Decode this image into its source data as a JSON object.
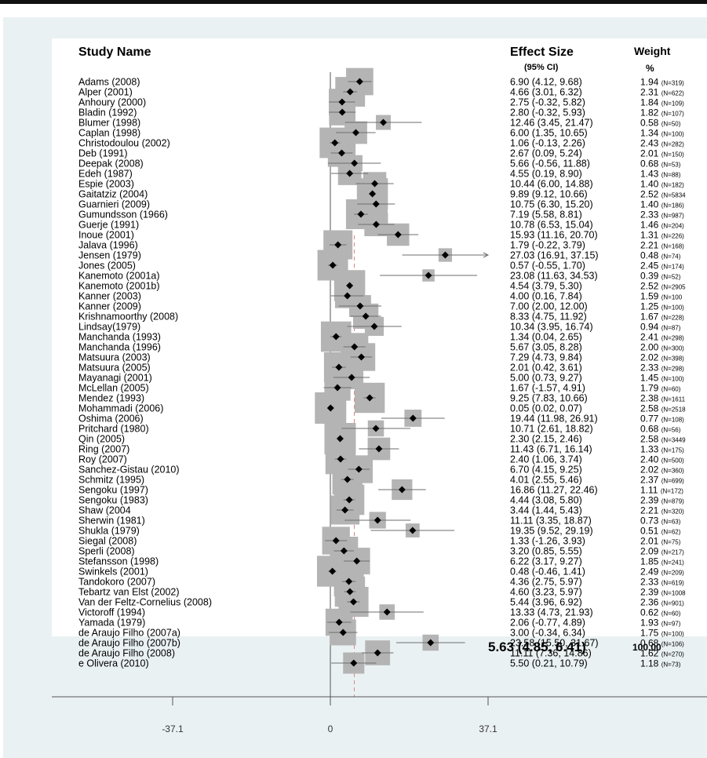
{
  "headers": {
    "study": "Study Name",
    "effect": "Effect Size",
    "ci": "(95% CI)",
    "weight": "Weight",
    "percent": "%"
  },
  "pooled": {
    "text": "5.63 (4.85, 6.41)",
    "weight": "100.00"
  },
  "chart_data": {
    "type": "forest",
    "title": "",
    "xlabel": "",
    "ylabel": "",
    "x_ticks": [
      "-37.1",
      "0",
      "37.1"
    ],
    "xlim": [
      -37.1,
      37.1
    ],
    "pooled": {
      "estimate": 5.63,
      "lower": 4.85,
      "upper": 6.41,
      "weight": "100.00"
    },
    "studies": [
      {
        "name": "Adams (2008)",
        "effect": 6.9,
        "lower": 4.12,
        "upper": 9.68,
        "ci": "6.90 (4.12, 9.68)",
        "weight": "1.94",
        "n": "(N=319)"
      },
      {
        "name": "Alper (2001)",
        "effect": 4.66,
        "lower": 3.01,
        "upper": 6.32,
        "ci": "4.66 (3.01, 6.32)",
        "weight": "2.31",
        "n": "(N=622)"
      },
      {
        "name": "Anhoury (2000)",
        "effect": 2.75,
        "lower": -0.32,
        "upper": 5.82,
        "ci": "2.75 (-0.32, 5.82)",
        "weight": "1.84",
        "n": "(N=109)"
      },
      {
        "name": "Bladin (1992)",
        "effect": 2.8,
        "lower": -0.32,
        "upper": 5.93,
        "ci": "2.80 (-0.32, 5.93)",
        "weight": "1.82",
        "n": "(N=107)"
      },
      {
        "name": "Blumer (1998)",
        "effect": 12.46,
        "lower": 3.45,
        "upper": 21.47,
        "ci": "12.46 (3.45, 21.47)",
        "weight": "0.58",
        "n": "(N=50)"
      },
      {
        "name": "Caplan (1998)",
        "effect": 6.0,
        "lower": 1.35,
        "upper": 10.65,
        "ci": "6.00 (1.35, 10.65)",
        "weight": "1.34",
        "n": "(N=100)"
      },
      {
        "name": "Christodoulou (2002)",
        "effect": 1.06,
        "lower": -0.13,
        "upper": 2.26,
        "ci": "1.06 (-0.13, 2.26)",
        "weight": "2.43",
        "n": "(N=282)"
      },
      {
        "name": "Deb (1991)",
        "effect": 2.67,
        "lower": 0.09,
        "upper": 5.24,
        "ci": "2.67 (0.09, 5.24)",
        "weight": "2.01",
        "n": "(N=150)"
      },
      {
        "name": "Deepak (2008)",
        "effect": 5.66,
        "lower": -0.56,
        "upper": 11.88,
        "ci": "5.66 (-0.56, 11.88)",
        "weight": "0.68",
        "n": "(N=53)"
      },
      {
        "name": "Edeh (1987)",
        "effect": 4.55,
        "lower": 0.19,
        "upper": 8.9,
        "ci": "4.55 (0.19, 8.90)",
        "weight": "1.43",
        "n": "(N=88)"
      },
      {
        "name": "Espie (2003)",
        "effect": 10.44,
        "lower": 6.0,
        "upper": 14.88,
        "ci": "10.44 (6.00, 14.88)",
        "weight": "1.40",
        "n": "(N=182)"
      },
      {
        "name": "Gaitatziz (2004)",
        "effect": 9.89,
        "lower": 9.12,
        "upper": 10.66,
        "ci": "9.89 (9.12, 10.66)",
        "weight": "2.52",
        "n": "(N=5834"
      },
      {
        "name": "Guarnieri (2009)",
        "effect": 10.75,
        "lower": 6.3,
        "upper": 15.2,
        "ci": "10.75 (6.30, 15.20)",
        "weight": "1.40",
        "n": "(N=186)"
      },
      {
        "name": "Gumundsson (1966)",
        "effect": 7.19,
        "lower": 5.58,
        "upper": 8.81,
        "ci": "7.19 (5.58, 8.81)",
        "weight": "2.33",
        "n": "(N=987)"
      },
      {
        "name": "Guerje (1991)",
        "effect": 10.78,
        "lower": 6.53,
        "upper": 15.04,
        "ci": "10.78 (6.53, 15.04)",
        "weight": "1.46",
        "n": "(N=204)"
      },
      {
        "name": "Inoue (2001)",
        "effect": 15.93,
        "lower": 11.16,
        "upper": 20.7,
        "ci": "15.93 (11.16, 20.70)",
        "weight": "1.31",
        "n": "(N=226)"
      },
      {
        "name": "Jalava (1996)",
        "effect": 1.79,
        "lower": -0.22,
        "upper": 3.79,
        "ci": "1.79 (-0.22, 3.79)",
        "weight": "2.21",
        "n": "(N=168)"
      },
      {
        "name": "Jensen (1979)",
        "effect": 27.03,
        "lower": 16.91,
        "upper": 37.15,
        "ci": "27.03 (16.91, 37.15)",
        "weight": "0.48",
        "n": "(N=74)",
        "arrow": true
      },
      {
        "name": "Jones (2005)",
        "effect": 0.57,
        "lower": -0.55,
        "upper": 1.7,
        "ci": "0.57 (-0.55, 1.70)",
        "weight": "2.45",
        "n": "(N=174)"
      },
      {
        "name": "Kanemoto (2001a)",
        "effect": 23.08,
        "lower": 11.63,
        "upper": 34.53,
        "ci": "23.08 (11.63, 34.53)",
        "weight": "0.39",
        "n": "(N=52)"
      },
      {
        "name": "Kanemoto (2001b)",
        "effect": 4.54,
        "lower": 3.79,
        "upper": 5.3,
        "ci": "4.54 (3.79, 5.30)",
        "weight": "2.52",
        "n": "(N=2905"
      },
      {
        "name": "Kanner (2003)",
        "effect": 4.0,
        "lower": 0.16,
        "upper": 7.84,
        "ci": "4.00 (0.16, 7.84)",
        "weight": "1.59",
        "n": "(N=100"
      },
      {
        "name": "Kanner (2009)",
        "effect": 7.0,
        "lower": 2.0,
        "upper": 12.0,
        "ci": "7.00 (2.00, 12.00)",
        "weight": "1.25",
        "n": "(N=100)"
      },
      {
        "name": "Krishnamoorthy (2008)",
        "effect": 8.33,
        "lower": 4.75,
        "upper": 11.92,
        "ci": "8.33 (4.75, 11.92)",
        "weight": "1.67",
        "n": "(N=228)"
      },
      {
        "name": "Lindsay(1979)",
        "effect": 10.34,
        "lower": 3.95,
        "upper": 16.74,
        "ci": "10.34 (3.95, 16.74)",
        "weight": "0.94",
        "n": "(N=87)"
      },
      {
        "name": "Manchanda (1993)",
        "effect": 1.34,
        "lower": 0.04,
        "upper": 2.65,
        "ci": "1.34 (0.04, 2.65)",
        "weight": "2.41",
        "n": "(N=298)"
      },
      {
        "name": "Manchanda (1996)",
        "effect": 5.67,
        "lower": 3.05,
        "upper": 8.28,
        "ci": "5.67 (3.05, 8.28)",
        "weight": "2.00",
        "n": "(N=300)"
      },
      {
        "name": "Matsuura (2003)",
        "effect": 7.29,
        "lower": 4.73,
        "upper": 9.84,
        "ci": "7.29 (4.73, 9.84)",
        "weight": "2.02",
        "n": "(N=398)"
      },
      {
        "name": "Matsuura (2005)",
        "effect": 2.01,
        "lower": 0.42,
        "upper": 3.61,
        "ci": "2.01 (0.42, 3.61)",
        "weight": "2.33",
        "n": "(N=298)"
      },
      {
        "name": "Mayanagi (2001)",
        "effect": 5.0,
        "lower": 0.73,
        "upper": 9.27,
        "ci": "5.00 (0.73, 9.27)",
        "weight": "1.45",
        "n": "(N=100)"
      },
      {
        "name": "McLellan (2005)",
        "effect": 1.67,
        "lower": -1.57,
        "upper": 4.91,
        "ci": "1.67 (-1.57, 4.91)",
        "weight": "1.79",
        "n": "(N=60)"
      },
      {
        "name": "Mendez (1993)",
        "effect": 9.25,
        "lower": 7.83,
        "upper": 10.66,
        "ci": "9.25 (7.83, 10.66)",
        "weight": "2.38",
        "n": "(N=1611"
      },
      {
        "name": "Mohammadi (2006)",
        "effect": 0.05,
        "lower": 0.02,
        "upper": 0.07,
        "ci": "0.05 (0.02, 0.07)",
        "weight": "2.58",
        "n": "(N=2518"
      },
      {
        "name": "Oshima (2006)",
        "effect": 19.44,
        "lower": 11.98,
        "upper": 26.91,
        "ci": "19.44 (11.98, 26.91)",
        "weight": "0.77",
        "n": "(N=108)"
      },
      {
        "name": "Pritchard (1980)",
        "effect": 10.71,
        "lower": 2.61,
        "upper": 18.82,
        "ci": "10.71 (2.61, 18.82)",
        "weight": "0.68",
        "n": "(N=56)"
      },
      {
        "name": "Qin (2005)",
        "effect": 2.3,
        "lower": 2.15,
        "upper": 2.46,
        "ci": "2.30 (2.15, 2.46)",
        "weight": "2.58",
        "n": "(N=3449"
      },
      {
        "name": "Ring (2007)",
        "effect": 11.43,
        "lower": 6.71,
        "upper": 16.14,
        "ci": "11.43 (6.71, 16.14)",
        "weight": "1.33",
        "n": "(N=175)"
      },
      {
        "name": "Roy (2007)",
        "effect": 2.4,
        "lower": 1.06,
        "upper": 3.74,
        "ci": "2.40 (1.06, 3.74)",
        "weight": "2.40",
        "n": "(N=500)"
      },
      {
        "name": "Sanchez-Gistau (2010)",
        "effect": 6.7,
        "lower": 4.15,
        "upper": 9.25,
        "ci": "6.70 (4.15, 9.25)",
        "weight": "2.02",
        "n": "(N=360)"
      },
      {
        "name": "Schmitz (1995)",
        "effect": 4.01,
        "lower": 2.55,
        "upper": 5.46,
        "ci": "4.01 (2.55, 5.46)",
        "weight": "2.37",
        "n": "(N=699)"
      },
      {
        "name": "Sengoku (1997)",
        "effect": 16.86,
        "lower": 11.27,
        "upper": 22.46,
        "ci": "16.86 (11.27, 22.46)",
        "weight": "1.11",
        "n": "(N=172)"
      },
      {
        "name": "Sengoku (1983)",
        "effect": 4.44,
        "lower": 3.08,
        "upper": 5.8,
        "ci": "4.44 (3.08, 5.80)",
        "weight": "2.39",
        "n": "(N=879)"
      },
      {
        "name": "Shaw (2004",
        "effect": 3.44,
        "lower": 1.44,
        "upper": 5.43,
        "ci": "3.44 (1.44, 5.43)",
        "weight": "2.21",
        "n": "(N=320)"
      },
      {
        "name": "Sherwin (1981)",
        "effect": 11.11,
        "lower": 3.35,
        "upper": 18.87,
        "ci": "11.11 (3.35, 18.87)",
        "weight": "0.73",
        "n": "(N=63)"
      },
      {
        "name": "Shukla (1979)",
        "effect": 19.35,
        "lower": 9.52,
        "upper": 29.19,
        "ci": "19.35 (9.52, 29.19)",
        "weight": "0.51",
        "n": "(N=62)"
      },
      {
        "name": "Siegal (2008)",
        "effect": 1.33,
        "lower": -1.26,
        "upper": 3.93,
        "ci": "1.33 (-1.26, 3.93)",
        "weight": "2.01",
        "n": "(N=75)"
      },
      {
        "name": "Sperli (2008)",
        "effect": 3.2,
        "lower": 0.85,
        "upper": 5.55,
        "ci": "3.20 (0.85, 5.55)",
        "weight": "2.09",
        "n": "(N=217)"
      },
      {
        "name": "Stefansson (1998)",
        "effect": 6.22,
        "lower": 3.17,
        "upper": 9.27,
        "ci": "6.22 (3.17, 9.27)",
        "weight": "1.85",
        "n": "(N=241)"
      },
      {
        "name": "Swinkels (2001)",
        "effect": 0.48,
        "lower": -0.46,
        "upper": 1.41,
        "ci": "0.48 (-0.46, 1.41)",
        "weight": "2.49",
        "n": "(N=209)"
      },
      {
        "name": "Tandokoro (2007)",
        "effect": 4.36,
        "lower": 2.75,
        "upper": 5.97,
        "ci": "4.36 (2.75, 5.97)",
        "weight": "2.33",
        "n": "(N=619)"
      },
      {
        "name": "Tebartz van Elst (2002)",
        "effect": 4.6,
        "lower": 3.23,
        "upper": 5.97,
        "ci": "4.60 (3.23, 5.97)",
        "weight": "2.39",
        "n": "(N=1008"
      },
      {
        "name": "Van der Feltz-Cornelius (2008)",
        "effect": 5.44,
        "lower": 3.96,
        "upper": 6.92,
        "ci": "5.44 (3.96, 6.92)",
        "weight": "2.36",
        "n": "(N=901)"
      },
      {
        "name": "Victoroff (1994)",
        "effect": 13.33,
        "lower": 4.73,
        "upper": 21.93,
        "ci": "13.33 (4.73, 21.93)",
        "weight": "0.62",
        "n": "(N=60)"
      },
      {
        "name": "Yamada (1979)",
        "effect": 2.06,
        "lower": -0.77,
        "upper": 4.89,
        "ci": "2.06 (-0.77, 4.89)",
        "weight": "1.93",
        "n": "(N=97)"
      },
      {
        "name": "de Araujo Filho (2007a)",
        "effect": 3.0,
        "lower": -0.34,
        "upper": 6.34,
        "ci": "3.00 (-0.34, 6.34)",
        "weight": "1.75",
        "n": "(N=100)"
      },
      {
        "name": "de Araujo Filho (2007b)",
        "effect": 23.58,
        "lower": 15.5,
        "upper": 31.67,
        "ci": "23.58 (15.50, 31.67)",
        "weight": "0.68",
        "n": "(N=106)"
      },
      {
        "name": "de Araujo Filho (2008)",
        "effect": 11.11,
        "lower": 7.36,
        "upper": 14.86,
        "ci": "11.11 (7.36, 14.86)",
        "weight": "1.62",
        "n": "(N=270)"
      },
      {
        "name": "e Olivera (2010)",
        "effect": 5.5,
        "lower": 0.21,
        "upper": 10.79,
        "ci": "5.50 (0.21, 10.79)",
        "weight": "1.18",
        "n": "(N=73)"
      }
    ]
  }
}
